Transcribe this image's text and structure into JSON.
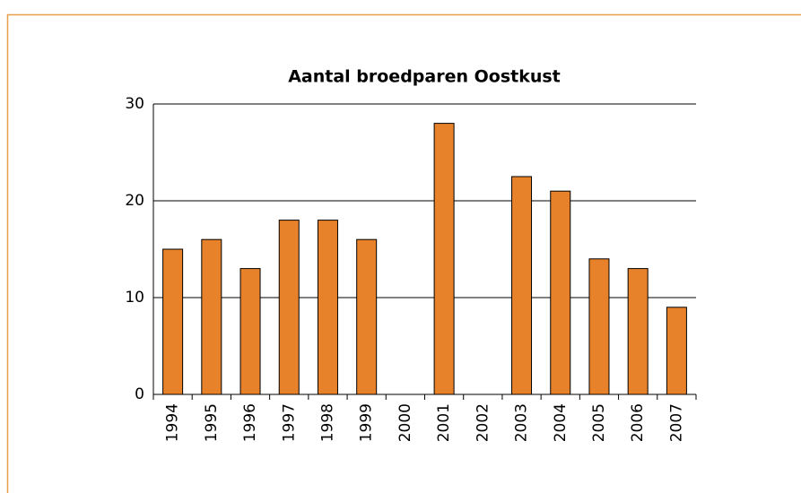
{
  "chart_data": {
    "type": "bar",
    "title": "Aantal broedparen Oostkust",
    "categories": [
      "1994",
      "1995",
      "1996",
      "1997",
      "1998",
      "1999",
      "2000",
      "2001",
      "2002",
      "2003",
      "2004",
      "2005",
      "2006",
      "2007"
    ],
    "values": [
      15,
      16,
      13,
      18,
      18,
      16,
      0,
      28,
      0,
      22.5,
      21,
      14,
      13,
      9
    ],
    "color": "#e8822a",
    "ylim": [
      0,
      30
    ],
    "yticks": [
      0,
      10,
      20,
      30
    ],
    "grid": true
  }
}
